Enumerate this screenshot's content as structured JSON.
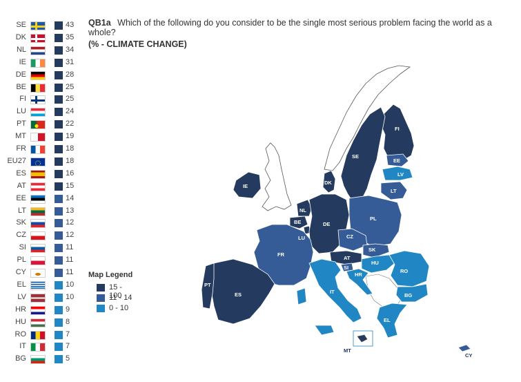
{
  "question": {
    "id": "QB1a",
    "text": "Which of the following do you consider to be the single most serious problem facing the world as a whole?",
    "subtitle": "(% - CLIMATE CHANGE)"
  },
  "colors": {
    "dark": "#243a5e",
    "medium": "#355c97",
    "light": "#2186c4"
  },
  "countries": [
    {
      "code": "SE",
      "value": "43",
      "band": "dark"
    },
    {
      "code": "DK",
      "value": "35",
      "band": "dark"
    },
    {
      "code": "NL",
      "value": "34",
      "band": "dark"
    },
    {
      "code": "IE",
      "value": "31",
      "band": "dark"
    },
    {
      "code": "DE",
      "value": "28",
      "band": "dark"
    },
    {
      "code": "BE",
      "value": "25",
      "band": "dark"
    },
    {
      "code": "FI",
      "value": "25",
      "band": "dark"
    },
    {
      "code": "LU",
      "value": "24",
      "band": "dark"
    },
    {
      "code": "PT",
      "value": "22",
      "band": "dark"
    },
    {
      "code": "MT",
      "value": "19",
      "band": "dark"
    },
    {
      "code": "FR",
      "value": "18",
      "band": "dark"
    },
    {
      "code": "EU27",
      "value": "18",
      "band": "dark"
    },
    {
      "code": "ES",
      "value": "16",
      "band": "dark"
    },
    {
      "code": "AT",
      "value": "15",
      "band": "dark"
    },
    {
      "code": "EE",
      "value": "14",
      "band": "medium"
    },
    {
      "code": "LT",
      "value": "13",
      "band": "medium"
    },
    {
      "code": "SK",
      "value": "12",
      "band": "medium"
    },
    {
      "code": "CZ",
      "value": "12",
      "band": "medium"
    },
    {
      "code": "SI",
      "value": "11",
      "band": "medium"
    },
    {
      "code": "PL",
      "value": "11",
      "band": "medium"
    },
    {
      "code": "CY",
      "value": "11",
      "band": "medium"
    },
    {
      "code": "EL",
      "value": "10",
      "band": "light"
    },
    {
      "code": "LV",
      "value": "10",
      "band": "light"
    },
    {
      "code": "HR",
      "value": "9",
      "band": "light"
    },
    {
      "code": "HU",
      "value": "8",
      "band": "light"
    },
    {
      "code": "RO",
      "value": "7",
      "band": "light"
    },
    {
      "code": "IT",
      "value": "7",
      "band": "light"
    },
    {
      "code": "BG",
      "value": "5",
      "band": "light"
    }
  ],
  "legend": {
    "title": "Map Legend",
    "items": [
      {
        "label": "15 - 100",
        "band": "dark"
      },
      {
        "label": "11 - 14",
        "band": "medium"
      },
      {
        "label": "0 - 10",
        "band": "light"
      }
    ]
  },
  "map_labels": {
    "FI": "FI",
    "SE": "SE",
    "EE": "EE",
    "LV": "LV",
    "LT": "LT",
    "DK": "DK",
    "IE": "IE",
    "NL": "NL",
    "BE": "BE",
    "LU": "LU",
    "DE": "DE",
    "PL": "PL",
    "CZ": "CZ",
    "SK": "SK",
    "AT": "AT",
    "SI": "SI",
    "HU": "HU",
    "HR": "HR",
    "RO": "RO",
    "FR": "FR",
    "PT": "PT",
    "ES": "ES",
    "IT": "IT",
    "BG": "BG",
    "EL": "EL",
    "MT": "MT",
    "CY": "CY"
  }
}
